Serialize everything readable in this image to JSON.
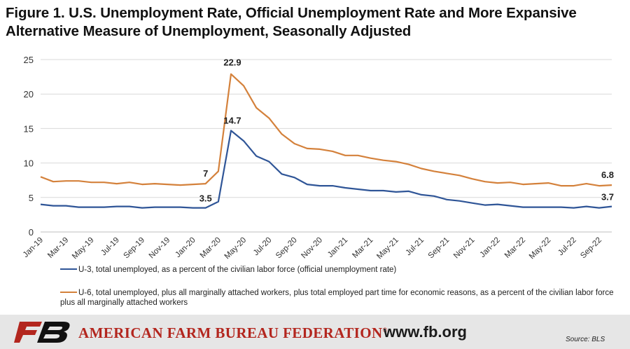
{
  "title": "Figure 1. U.S. Unemployment Rate, Official Unemployment Rate and More Expansive Alternative Measure of Unemployment, Seasonally Adjusted",
  "colors": {
    "u3": "#2f5597",
    "u6": "#d4813b",
    "grid": "#d9d9d9",
    "brand_red": "#b3261e"
  },
  "chart_data": {
    "type": "line",
    "ylim": [
      0,
      25
    ],
    "yticks": [
      0,
      5,
      10,
      15,
      20,
      25
    ],
    "x": [
      "Jan-19",
      "Feb-19",
      "Mar-19",
      "Apr-19",
      "May-19",
      "Jun-19",
      "Jul-19",
      "Aug-19",
      "Sep-19",
      "Oct-19",
      "Nov-19",
      "Dec-19",
      "Jan-20",
      "Feb-20",
      "Mar-20",
      "Apr-20",
      "May-20",
      "Jun-20",
      "Jul-20",
      "Aug-20",
      "Sep-20",
      "Oct-20",
      "Nov-20",
      "Dec-20",
      "Jan-21",
      "Feb-21",
      "Mar-21",
      "Apr-21",
      "May-21",
      "Jun-21",
      "Jul-21",
      "Aug-21",
      "Sep-21",
      "Oct-21",
      "Nov-21",
      "Dec-21",
      "Jan-22",
      "Feb-22",
      "Mar-22",
      "Apr-22",
      "May-22",
      "Jun-22",
      "Jul-22",
      "Aug-22",
      "Sep-22",
      "Oct-22"
    ],
    "xtick_labels": [
      "Jan-19",
      "Mar-19",
      "May-19",
      "Jul-19",
      "Sep-19",
      "Nov-19",
      "Jan-20",
      "Mar-20",
      "May-20",
      "Jul-20",
      "Sep-20",
      "Nov-20",
      "Jan-21",
      "Mar-21",
      "May-21",
      "Jul-21",
      "Sep-21",
      "Nov-21",
      "Jan-22",
      "Mar-22",
      "May-22",
      "Jul-22",
      "Sep-22"
    ],
    "series": [
      {
        "name": "U-3, total unemployed, as a percent of the civilian labor force (official unemployment rate)",
        "key": "u3",
        "values": [
          4.0,
          3.8,
          3.8,
          3.6,
          3.6,
          3.6,
          3.7,
          3.7,
          3.5,
          3.6,
          3.6,
          3.6,
          3.5,
          3.5,
          4.4,
          14.7,
          13.2,
          11.0,
          10.2,
          8.4,
          7.9,
          6.9,
          6.7,
          6.7,
          6.4,
          6.2,
          6.0,
          6.0,
          5.8,
          5.9,
          5.4,
          5.2,
          4.7,
          4.5,
          4.2,
          3.9,
          4.0,
          3.8,
          3.6,
          3.6,
          3.6,
          3.6,
          3.5,
          3.7,
          3.5,
          3.7
        ]
      },
      {
        "name": "U-6, total unemployed, plus all marginally attached workers, plus total employed part time for economic reasons, as a percent of the civilian labor force plus all marginally attached workers",
        "key": "u6",
        "values": [
          8.0,
          7.3,
          7.4,
          7.4,
          7.2,
          7.2,
          7.0,
          7.2,
          6.9,
          7.0,
          6.9,
          6.8,
          6.9,
          7.0,
          8.8,
          22.9,
          21.2,
          18.0,
          16.5,
          14.2,
          12.8,
          12.1,
          12.0,
          11.7,
          11.1,
          11.1,
          10.7,
          10.4,
          10.2,
          9.8,
          9.2,
          8.8,
          8.5,
          8.2,
          7.7,
          7.3,
          7.1,
          7.2,
          6.9,
          7.0,
          7.1,
          6.7,
          6.7,
          7.0,
          6.7,
          6.8
        ]
      }
    ],
    "annotations": [
      {
        "series": "u6",
        "index": 13,
        "label": "7"
      },
      {
        "series": "u3",
        "index": 13,
        "label": "3.5"
      },
      {
        "series": "u6",
        "index": 15,
        "label": "22.9"
      },
      {
        "series": "u3",
        "index": 15,
        "label": "14.7"
      },
      {
        "series": "u6",
        "index": 45,
        "label": "6.8"
      },
      {
        "series": "u3",
        "index": 45,
        "label": "3.7"
      }
    ],
    "grid": true,
    "legend": "bottom"
  },
  "footer": {
    "logo_text": "FB",
    "org_name": "AMERICAN FARM BUREAU FEDERATION",
    "org_mark": "®",
    "url": "www.fb.org",
    "source": "Source: BLS"
  }
}
